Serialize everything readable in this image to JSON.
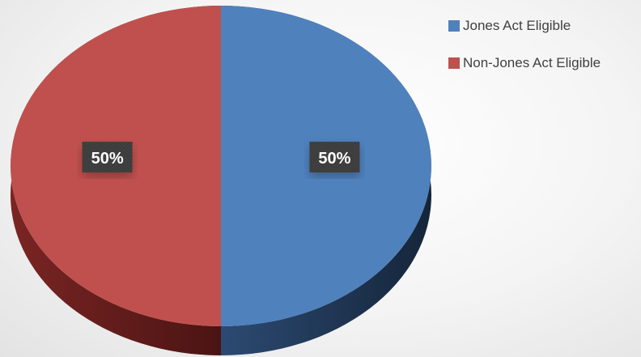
{
  "chart_data": {
    "type": "pie",
    "title": "",
    "style": "3d",
    "legend_position": "top-right",
    "series": [
      {
        "name": "Jones Act Eligible",
        "value": 50,
        "label": "50%",
        "color": "#4f81bd",
        "side_color": "#1f3552"
      },
      {
        "name": "Non-Jones Act Eligible",
        "value": 50,
        "label": "50%",
        "color": "#c0504d",
        "side_color": "#5e1a19"
      }
    ]
  }
}
